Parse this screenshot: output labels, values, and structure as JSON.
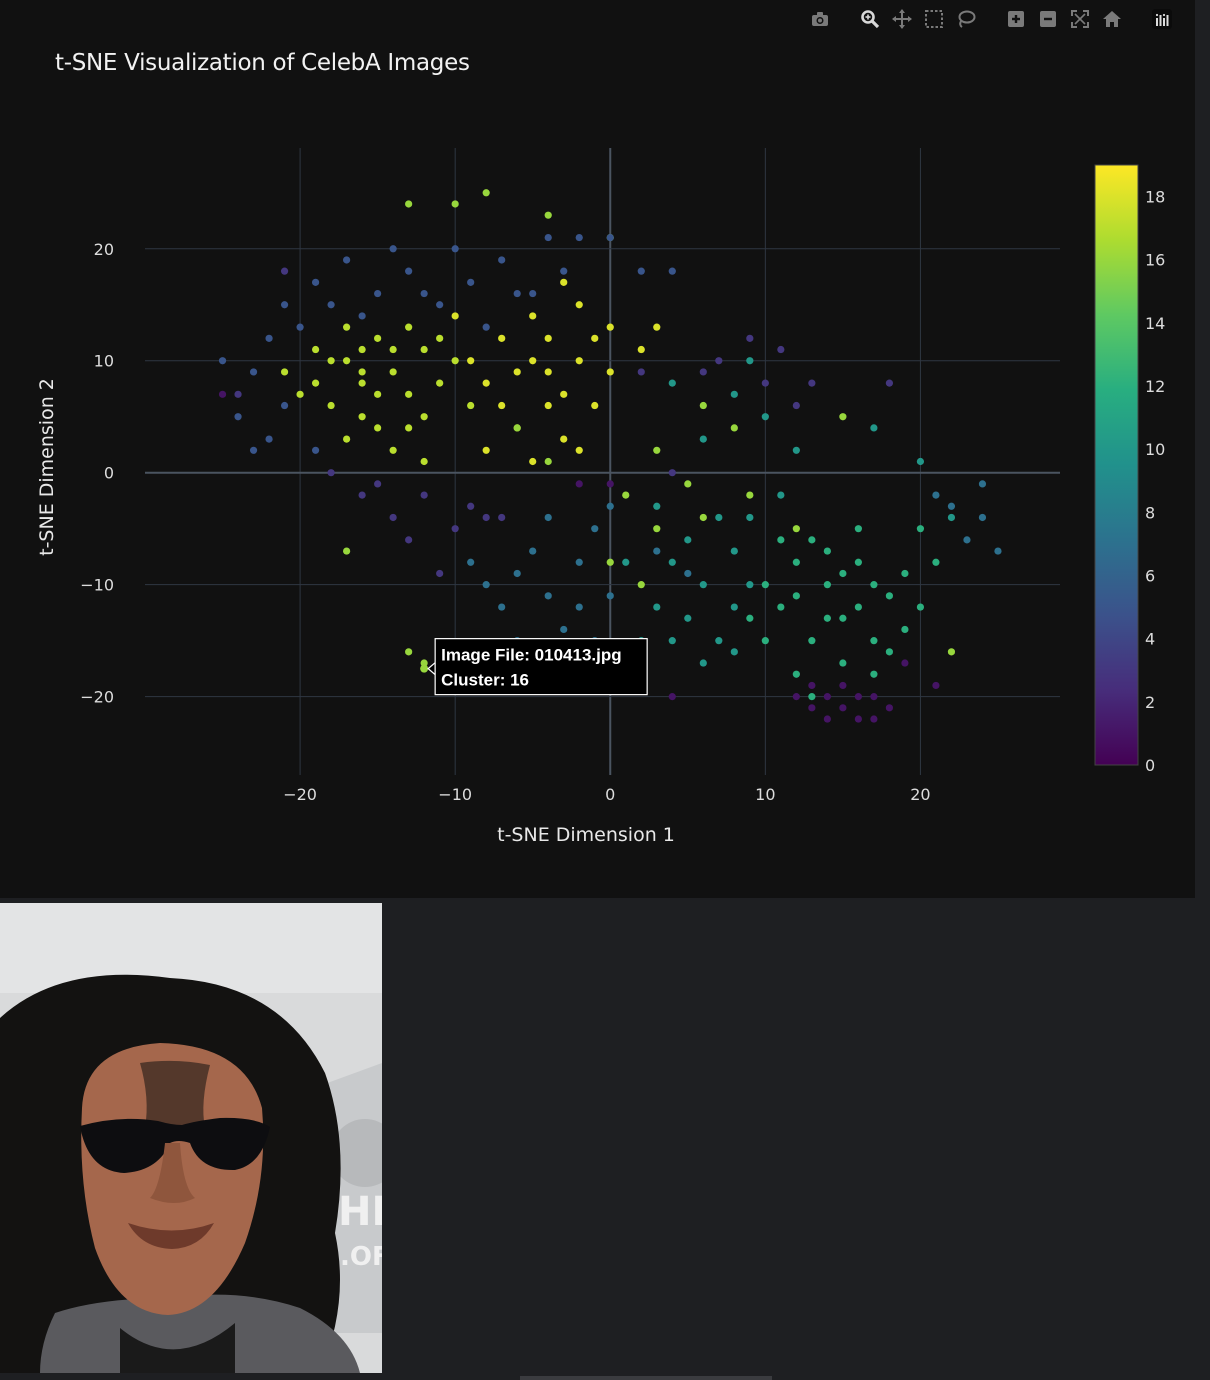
{
  "modebar": {
    "buttons": [
      {
        "name": "camera-icon",
        "tooltip": "Download plot as a png"
      },
      {
        "name": "zoom-icon",
        "tooltip": "Zoom"
      },
      {
        "name": "pan-icon",
        "tooltip": "Pan"
      },
      {
        "name": "box-select-icon",
        "tooltip": "Box Select"
      },
      {
        "name": "lasso-select-icon",
        "tooltip": "Lasso Select"
      },
      {
        "name": "zoom-in-icon",
        "tooltip": "Zoom in"
      },
      {
        "name": "zoom-out-icon",
        "tooltip": "Zoom out"
      },
      {
        "name": "autoscale-icon",
        "tooltip": "Autoscale"
      },
      {
        "name": "reset-axes-icon",
        "tooltip": "Reset axes"
      },
      {
        "name": "plotly-logo-icon",
        "tooltip": "Produced with Plotly"
      }
    ]
  },
  "chart_data": {
    "type": "scatter",
    "title": "t-SNE Visualization of CelebA Images",
    "xlabel": "t-SNE Dimension 1",
    "ylabel": "t-SNE Dimension 2",
    "xlim": [
      -30,
      29
    ],
    "ylim": [
      -27,
      29
    ],
    "xticks": [
      -20,
      -10,
      0,
      10,
      20
    ],
    "yticks": [
      -20,
      -10,
      0,
      10,
      20
    ],
    "xtick_labels": [
      "−20",
      "−10",
      "0",
      "10",
      "20"
    ],
    "ytick_labels": [
      "−20",
      "−10",
      "0",
      "10",
      "20"
    ],
    "grid": true,
    "colorscale": "viridis",
    "colorbar": {
      "min": 0,
      "max": 19,
      "ticks": [
        0,
        2,
        4,
        6,
        8,
        10,
        12,
        14,
        16,
        18
      ]
    },
    "clusters": [
      {
        "label": 17,
        "points": [
          [
            -17,
            10
          ],
          [
            -16,
            8
          ],
          [
            -15,
            12
          ],
          [
            -18,
            6
          ],
          [
            -14,
            9
          ],
          [
            -13,
            7
          ],
          [
            -16,
            5
          ],
          [
            -12,
            11
          ],
          [
            -15,
            4
          ],
          [
            -17,
            3
          ],
          [
            -11,
            8
          ],
          [
            -13,
            13
          ],
          [
            -19,
            8
          ],
          [
            -14,
            2
          ],
          [
            -10,
            10
          ],
          [
            -16,
            11
          ],
          [
            -12,
            5
          ],
          [
            -18,
            10
          ],
          [
            -11,
            12
          ],
          [
            -15,
            7
          ],
          [
            -20,
            7
          ],
          [
            -17,
            13
          ],
          [
            -13,
            4
          ],
          [
            -12,
            1
          ],
          [
            -21,
            9
          ],
          [
            -19,
            11
          ],
          [
            -9,
            6
          ],
          [
            -14,
            11
          ],
          [
            -16,
            9
          ]
        ]
      },
      {
        "label": 18,
        "points": [
          [
            -6,
            9
          ],
          [
            -4,
            12
          ],
          [
            -2,
            10
          ],
          [
            -3,
            7
          ],
          [
            -5,
            14
          ],
          [
            -1,
            12
          ],
          [
            -7,
            12
          ],
          [
            -2,
            15
          ],
          [
            -8,
            8
          ],
          [
            0,
            9
          ],
          [
            -4,
            6
          ],
          [
            -6,
            4
          ],
          [
            -3,
            3
          ],
          [
            -1,
            6
          ],
          [
            -5,
            10
          ],
          [
            -9,
            10
          ],
          [
            0,
            13
          ],
          [
            -3,
            17
          ],
          [
            -7,
            6
          ],
          [
            -4,
            9
          ],
          [
            2,
            11
          ],
          [
            -2,
            2
          ],
          [
            -5,
            1
          ],
          [
            -10,
            14
          ],
          [
            -8,
            2
          ],
          [
            3,
            13
          ]
        ]
      },
      {
        "label": 16,
        "points": [
          [
            -12,
            -17
          ],
          [
            -13,
            -16
          ],
          [
            -11,
            -17.5
          ],
          [
            -13,
            24
          ],
          [
            -10,
            24
          ],
          [
            -8,
            25
          ],
          [
            -4,
            23
          ],
          [
            0,
            21
          ],
          [
            -17,
            -7
          ],
          [
            1,
            -2
          ],
          [
            3,
            2
          ],
          [
            6,
            6
          ],
          [
            8,
            4
          ],
          [
            -6,
            4
          ],
          [
            -4,
            1
          ],
          [
            0,
            -8
          ],
          [
            3,
            -5
          ],
          [
            6,
            -4
          ],
          [
            15,
            5
          ],
          [
            22,
            -16
          ],
          [
            9,
            -2
          ],
          [
            12,
            -5
          ],
          [
            5,
            -1
          ],
          [
            2,
            -10
          ]
        ]
      },
      {
        "label": 12,
        "points": [
          [
            12,
            -8
          ],
          [
            14,
            -10
          ],
          [
            16,
            -12
          ],
          [
            11,
            -12
          ],
          [
            13,
            -15
          ],
          [
            15,
            -17
          ],
          [
            17,
            -15
          ],
          [
            10,
            -10
          ],
          [
            18,
            -11
          ],
          [
            13,
            -6
          ],
          [
            16,
            -8
          ],
          [
            19,
            -14
          ],
          [
            15,
            -13
          ],
          [
            12,
            -18
          ],
          [
            17,
            -18
          ],
          [
            14,
            -7
          ],
          [
            10,
            -15
          ],
          [
            19,
            -9
          ],
          [
            20,
            -5
          ],
          [
            16,
            -5
          ],
          [
            11,
            -6
          ],
          [
            14,
            -13
          ],
          [
            18,
            -16
          ],
          [
            13,
            -20
          ],
          [
            9,
            -13
          ],
          [
            21,
            -8
          ],
          [
            17,
            -10
          ],
          [
            20,
            -12
          ],
          [
            15,
            -9
          ],
          [
            12,
            -11
          ]
        ]
      },
      {
        "label": 10,
        "points": [
          [
            4,
            -8
          ],
          [
            6,
            -10
          ],
          [
            8,
            -7
          ],
          [
            5,
            -13
          ],
          [
            7,
            -15
          ],
          [
            3,
            -12
          ],
          [
            9,
            -10
          ],
          [
            2,
            -15
          ],
          [
            6,
            -17
          ],
          [
            8,
            -12
          ],
          [
            5,
            -6
          ],
          [
            7,
            -4
          ],
          [
            3,
            -3
          ],
          [
            9,
            -4
          ],
          [
            1,
            -8
          ],
          [
            4,
            -15
          ],
          [
            8,
            -16
          ],
          [
            6,
            3
          ],
          [
            8,
            7
          ],
          [
            10,
            5
          ],
          [
            4,
            8
          ],
          [
            12,
            2
          ],
          [
            9,
            10
          ],
          [
            20,
            1
          ],
          [
            17,
            4
          ],
          [
            22,
            -4
          ],
          [
            11,
            -2
          ]
        ]
      },
      {
        "label": 7,
        "points": [
          [
            -6,
            -9
          ],
          [
            -4,
            -11
          ],
          [
            -2,
            -8
          ],
          [
            -7,
            -12
          ],
          [
            -3,
            -14
          ],
          [
            -1,
            -5
          ],
          [
            -5,
            -7
          ],
          [
            -8,
            -10
          ],
          [
            -2,
            -12
          ],
          [
            -6,
            -15
          ],
          [
            0,
            -11
          ],
          [
            -4,
            -4
          ],
          [
            -9,
            -8
          ],
          [
            -1,
            -15
          ],
          [
            2,
            -18
          ],
          [
            0,
            -3
          ],
          [
            22,
            -3
          ],
          [
            24,
            -4
          ],
          [
            23,
            -6
          ],
          [
            25,
            -7
          ],
          [
            21,
            -2
          ],
          [
            24,
            -1
          ],
          [
            5,
            -9
          ],
          [
            3,
            -7
          ]
        ]
      },
      {
        "label": 5,
        "points": [
          [
            -22,
            12
          ],
          [
            -21,
            15
          ],
          [
            -19,
            17
          ],
          [
            -17,
            19
          ],
          [
            -15,
            16
          ],
          [
            -13,
            18
          ],
          [
            -11,
            15
          ],
          [
            -9,
            17
          ],
          [
            -7,
            19
          ],
          [
            -5,
            16
          ],
          [
            -3,
            18
          ],
          [
            -20,
            13
          ],
          [
            -23,
            9
          ],
          [
            -24,
            5
          ],
          [
            -22,
            3
          ],
          [
            -18,
            15
          ],
          [
            -14,
            20
          ],
          [
            -10,
            20
          ],
          [
            -8,
            13
          ],
          [
            -6,
            16
          ],
          [
            -4,
            21
          ],
          [
            -16,
            14
          ],
          [
            -12,
            16
          ],
          [
            -25,
            10
          ],
          [
            -21,
            6
          ],
          [
            0,
            21
          ],
          [
            2,
            18
          ],
          [
            4,
            18
          ],
          [
            -2,
            21
          ],
          [
            -19,
            2
          ],
          [
            -23,
            2
          ]
        ]
      },
      {
        "label": 3,
        "points": [
          [
            -14,
            -4
          ],
          [
            -12,
            -2
          ],
          [
            -10,
            -5
          ],
          [
            -16,
            -2
          ],
          [
            -8,
            -4
          ],
          [
            -18,
            0
          ],
          [
            -13,
            -6
          ],
          [
            -11,
            -9
          ],
          [
            -9,
            -3
          ],
          [
            -15,
            -1
          ],
          [
            9,
            12
          ],
          [
            11,
            11
          ],
          [
            7,
            10
          ],
          [
            13,
            8
          ],
          [
            10,
            8
          ],
          [
            6,
            9
          ],
          [
            12,
            6
          ],
          [
            -21,
            18
          ],
          [
            -24,
            7
          ],
          [
            18,
            8
          ],
          [
            2,
            9
          ],
          [
            4,
            0
          ],
          [
            -7,
            -4
          ]
        ]
      },
      {
        "label": 1,
        "points": [
          [
            14,
            -20
          ],
          [
            15,
            -21
          ],
          [
            16,
            -22
          ],
          [
            13,
            -21
          ],
          [
            17,
            -20
          ],
          [
            15,
            -19
          ],
          [
            14,
            -22
          ],
          [
            16,
            -20
          ],
          [
            18,
            -21
          ],
          [
            12,
            -20
          ],
          [
            17,
            -22
          ],
          [
            13,
            -19
          ],
          [
            4,
            -20
          ],
          [
            19,
            -17
          ],
          [
            21,
            -19
          ],
          [
            -25,
            7
          ],
          [
            0,
            -1
          ],
          [
            -2,
            -1
          ]
        ]
      }
    ],
    "hover": {
      "x": -12,
      "y": -17.5,
      "lines": [
        "Image File: 010413.jpg",
        "Cluster: 16"
      ]
    }
  },
  "image_panel": {
    "subject": "celebrity-photo",
    "background_color": "#d9dadb",
    "hair_color": "#131211",
    "skin_color": "#a5674c",
    "glasses_color": "#0d0d10",
    "jacket_color": "#5a5a5e",
    "backdrop_text": [
      "HI",
      ".OF"
    ]
  }
}
